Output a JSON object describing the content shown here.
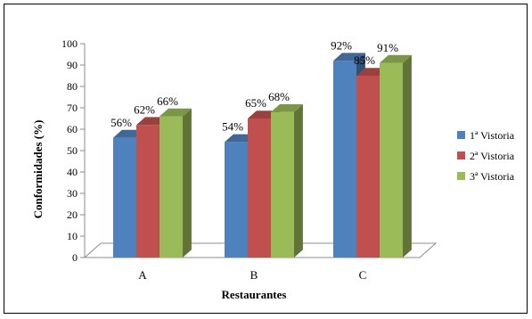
{
  "chart_data": {
    "type": "bar",
    "title": "",
    "xlabel": "Restaurantes",
    "ylabel": "Conformidades (%)",
    "ylim": [
      0,
      100
    ],
    "yticks": [
      0,
      10,
      20,
      30,
      40,
      50,
      60,
      70,
      80,
      90,
      100
    ],
    "categories": [
      "A",
      "B",
      "C"
    ],
    "series": [
      {
        "name": "1ª Vistoria",
        "values": [
          56,
          54,
          92
        ],
        "labels": [
          "56%",
          "54%",
          "92%"
        ],
        "color": "#4F81BD"
      },
      {
        "name": "2ª Vistoria",
        "values": [
          62,
          65,
          85
        ],
        "labels": [
          "62%",
          "65%",
          "85%"
        ],
        "color": "#C0504D"
      },
      {
        "name": "3ª Vistoria",
        "values": [
          66,
          68,
          91
        ],
        "labels": [
          "66%",
          "68%",
          "91%"
        ],
        "color": "#9BBB59"
      }
    ],
    "legend_position": "right",
    "grid": false,
    "style": "3d-column"
  }
}
